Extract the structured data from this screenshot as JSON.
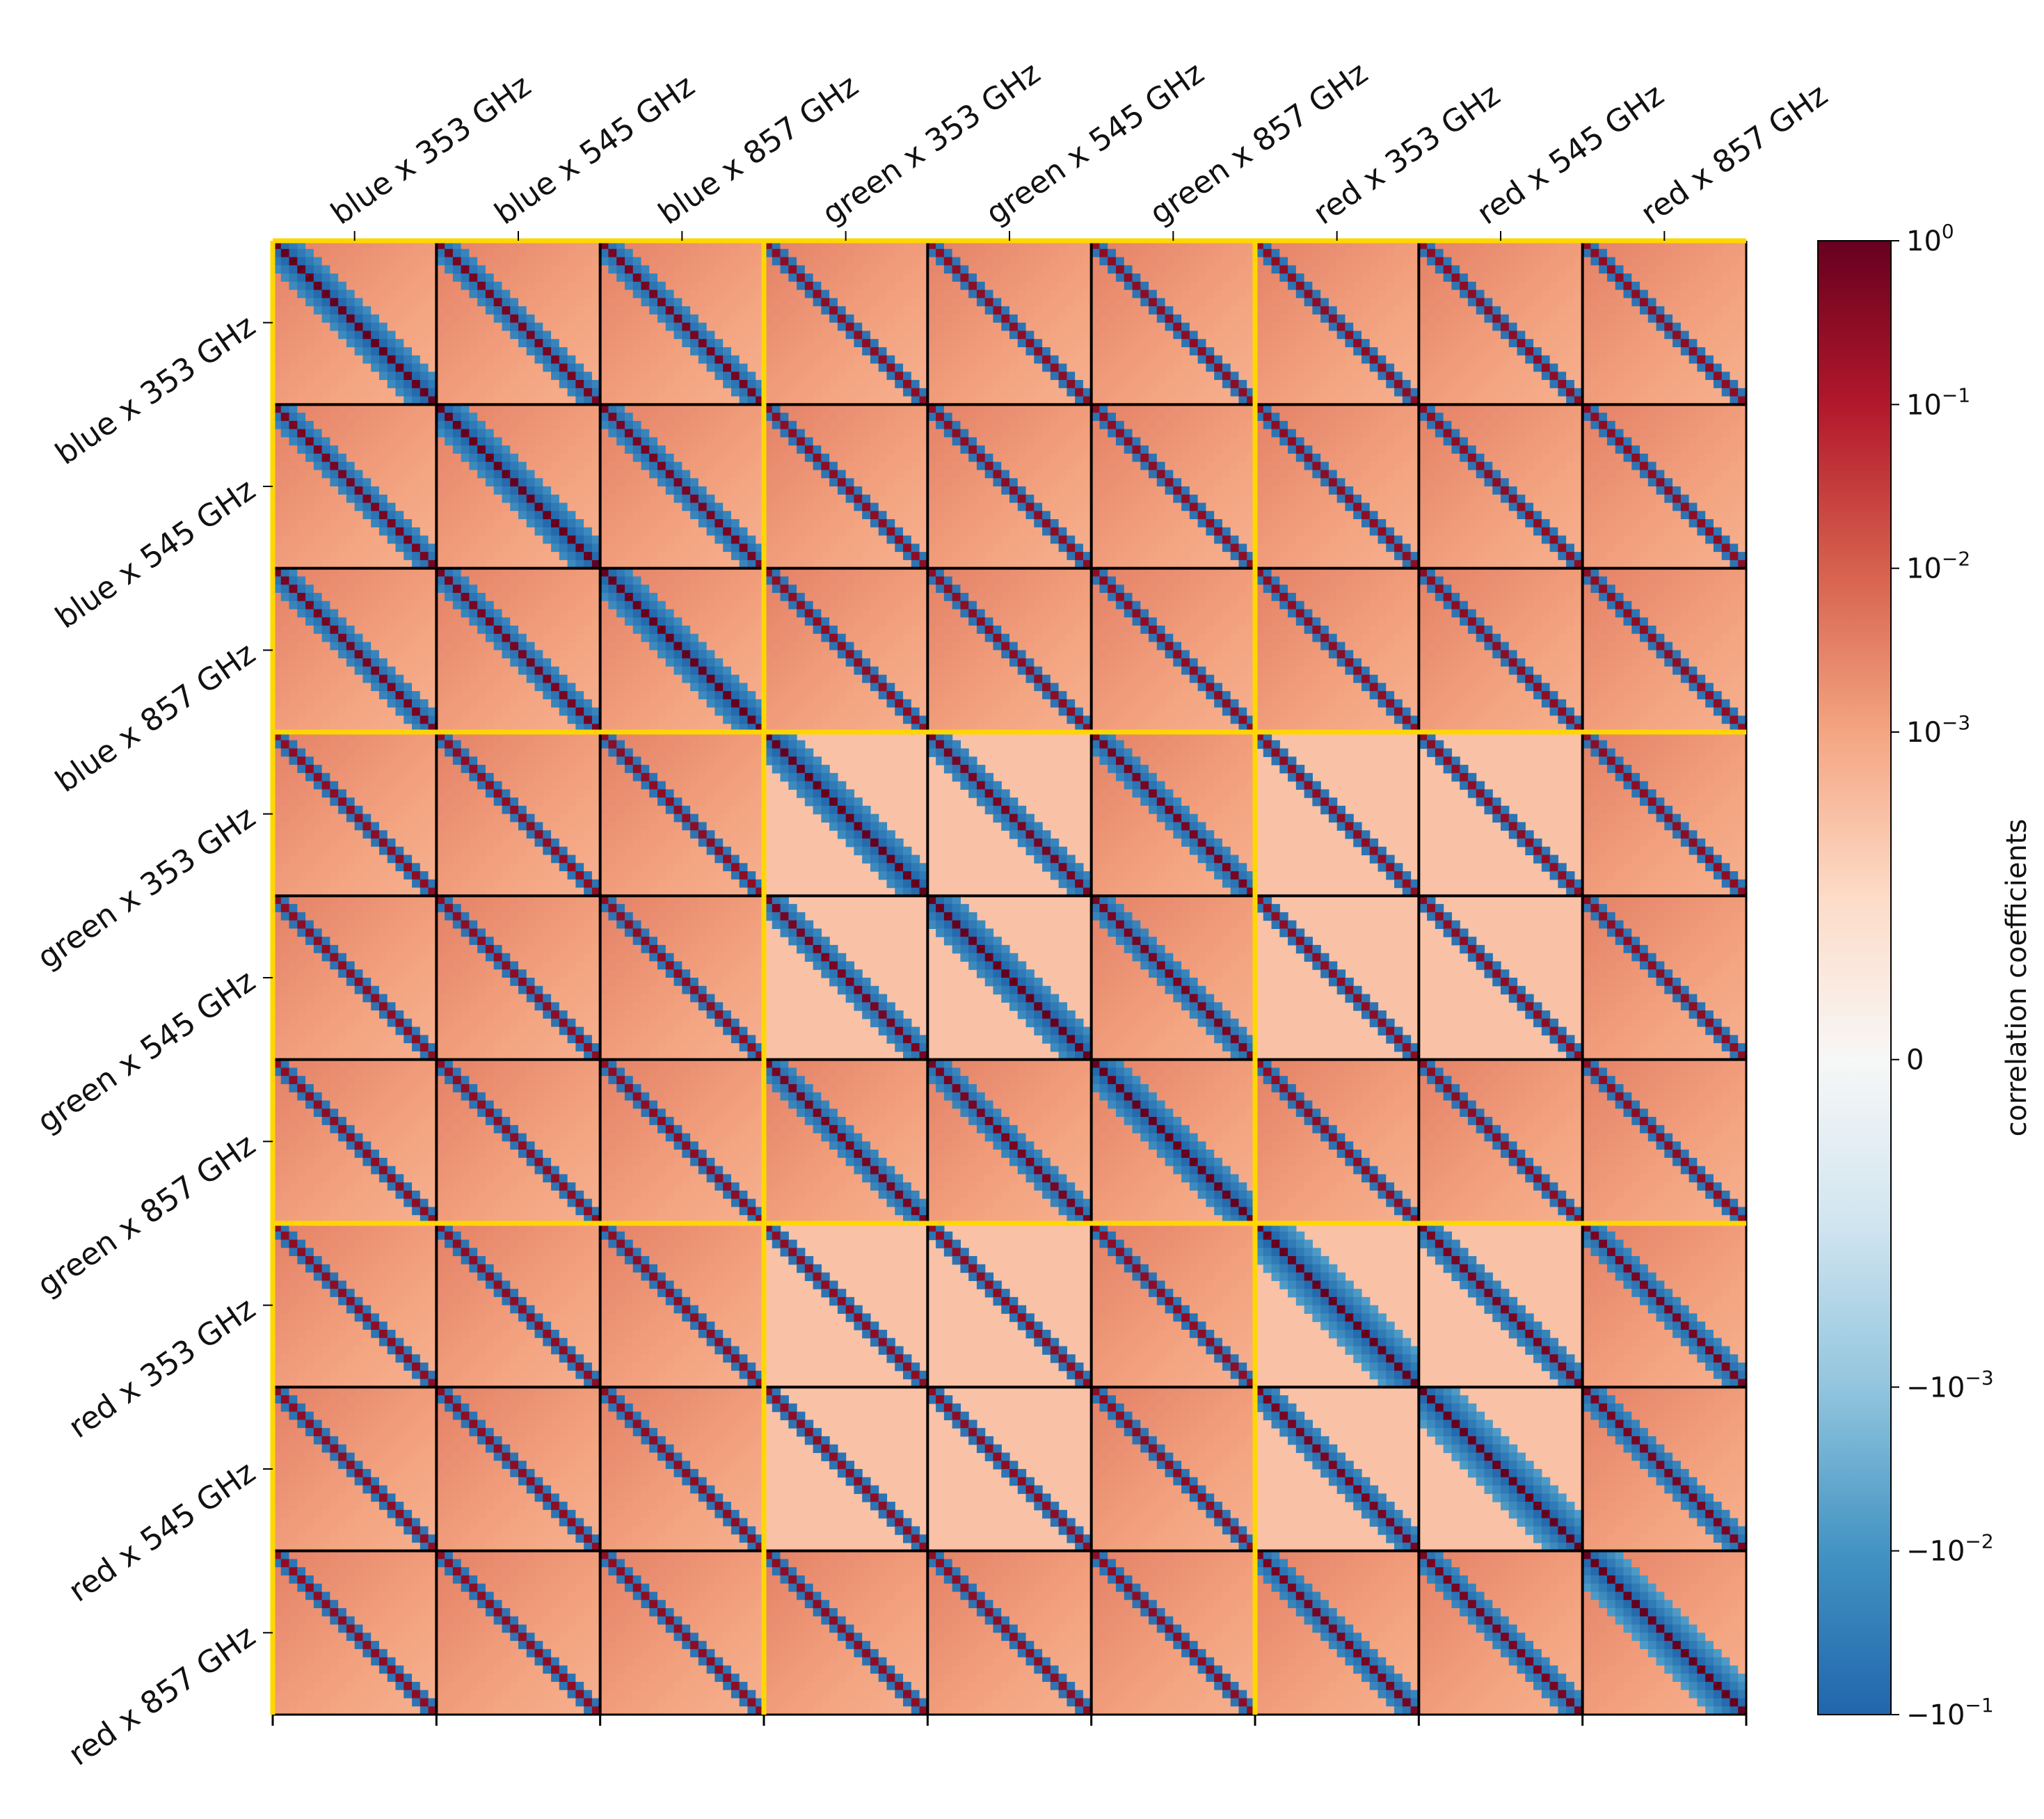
{
  "chart_data": {
    "type": "heatmap",
    "title": "",
    "blocks": [
      "blue x 353 GHz",
      "blue x 545 GHz",
      "blue x 857 GHz",
      "green x 353 GHz",
      "green x 545 GHz",
      "green x 857 GHz",
      "red x 353 GHz",
      "red x 545 GHz",
      "red x 857 GHz"
    ],
    "bins_per_block": 20,
    "group_size": 3,
    "colorbar": {
      "label": "correlation coefficients",
      "scale": "symlog",
      "range": [
        -0.1,
        1
      ],
      "ticks": [
        {
          "value": 1,
          "label": "10",
          "exp": "0"
        },
        {
          "value": 0.1,
          "label": "10",
          "exp": "−1"
        },
        {
          "value": 0.01,
          "label": "10",
          "exp": "−2"
        },
        {
          "value": 0.001,
          "label": "10",
          "exp": "−3"
        },
        {
          "value": 0,
          "label": "0",
          "exp": ""
        },
        {
          "value": -0.001,
          "label": "−10",
          "exp": "−3"
        },
        {
          "value": -0.01,
          "label": "−10",
          "exp": "−2"
        },
        {
          "value": -0.1,
          "label": "−10",
          "exp": "−1"
        }
      ]
    },
    "block_structure": {
      "diagonal_value": 1,
      "nearest_neighbor_value": -0.05,
      "background_value": 0.0003,
      "off_diagonal_blocks_diagonal_value": 0.3
    },
    "colors": {
      "group_border": "#FFD700",
      "block_border": "#000000",
      "cmap": [
        "#2166ac",
        "#4393c3",
        "#92c5de",
        "#d1e5f0",
        "#f7f7f7",
        "#fddbc7",
        "#f4a582",
        "#d6604d",
        "#b2182b",
        "#67001f"
      ]
    }
  }
}
